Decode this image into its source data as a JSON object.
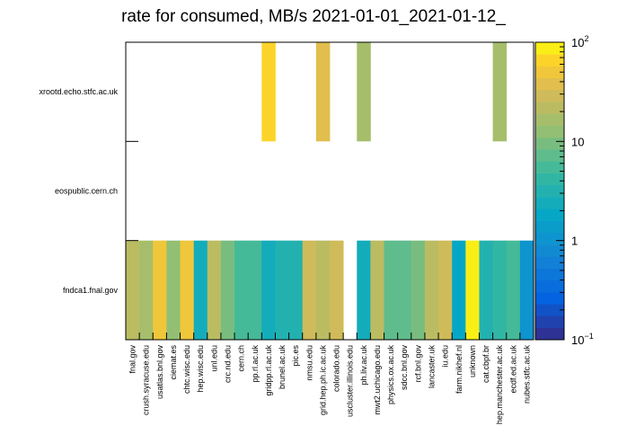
{
  "chart_data": {
    "type": "heatmap",
    "title": "rate for consumed, MB/s 2021-01-01_2021-01-12_",
    "y_categories": [
      "fndca1.fnal.gov",
      "eospublic.cern.ch",
      "xrootd.echo.stfc.ac.uk"
    ],
    "x_categories": [
      "fnal.gov",
      "crush.syracuse.edu",
      "usatlas.bnl.gov",
      "ciemat.es",
      "chtc.wisc.edu",
      "hep.wisc.edu",
      "unl.edu",
      "crc.nd.edu",
      "cern.ch",
      "pp.rl.ac.uk",
      "gridpp.rl.ac.uk",
      "brunel.ac.uk",
      "pic.es",
      "nmsu.edu",
      "grid.hep.ph.ic.ac.uk",
      "colorado.edu",
      "uscluster.illinois.edu",
      "ph.liv.ac.uk",
      "mwt2.uchicago.edu",
      "physics.ox.ac.uk",
      "sdcc.bnl.gov",
      "rcf.bnl.gov",
      "lancaster.uk",
      "iu.edu",
      "farm.nikhef.nl",
      "unknown",
      "cat.cbpf.br",
      "hep.manchester.ac.uk",
      "ecdf.ed.ac.uk",
      "nubes.stfc.ac.uk"
    ],
    "z_scale": "log",
    "zlim": [
      0.1,
      100
    ],
    "z_ticks": [
      {
        "base": "10",
        "exp": "−1",
        "value": 0.1
      },
      {
        "base": "1",
        "exp": "",
        "value": 1
      },
      {
        "base": "10",
        "exp": "",
        "value": 10
      },
      {
        "base": "10",
        "exp": "2",
        "value": 100
      }
    ],
    "rows": [
      {
        "y": "fndca1.fnal.gov",
        "values": [
          20,
          18,
          50,
          12,
          50,
          2.2,
          20,
          10,
          5,
          5,
          2.2,
          3,
          3,
          30,
          20,
          30,
          null,
          2.5,
          20,
          8,
          8,
          10,
          20,
          30,
          1.8,
          100,
          3,
          4,
          6,
          1.2
        ]
      },
      {
        "y": "eospublic.cern.ch",
        "values": [
          null,
          null,
          null,
          null,
          null,
          null,
          null,
          null,
          null,
          null,
          null,
          null,
          null,
          null,
          null,
          null,
          null,
          null,
          null,
          null,
          null,
          null,
          null,
          null,
          null,
          null,
          null,
          null,
          null,
          null
        ]
      },
      {
        "y": "xrootd.echo.stfc.ac.uk",
        "values": [
          null,
          null,
          null,
          null,
          null,
          null,
          null,
          null,
          null,
          null,
          60,
          null,
          null,
          null,
          35,
          null,
          null,
          18,
          null,
          null,
          null,
          null,
          null,
          null,
          null,
          null,
          null,
          18,
          null,
          null
        ]
      }
    ]
  }
}
